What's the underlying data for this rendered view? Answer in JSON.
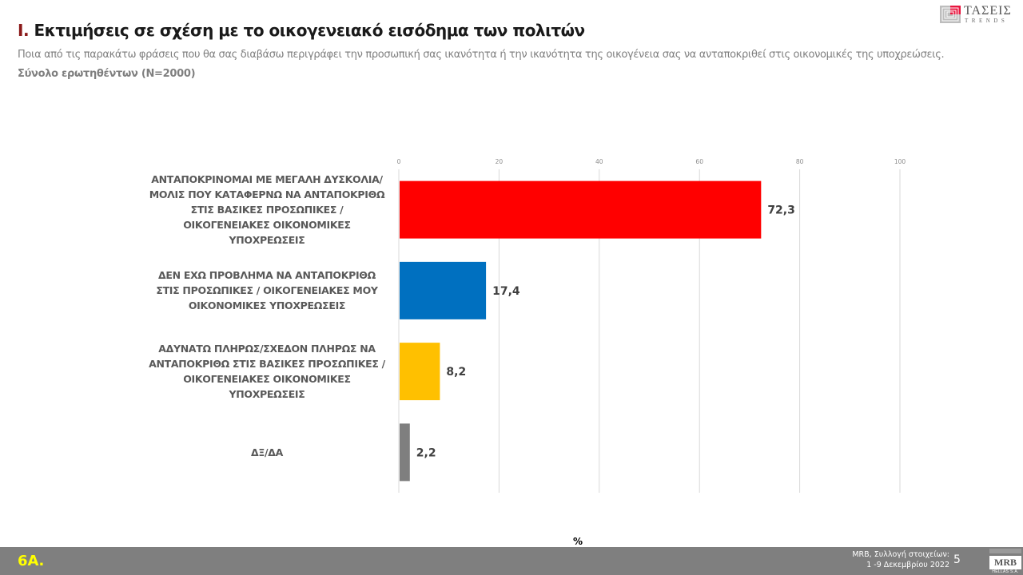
{
  "header": {
    "section_number": "I.",
    "title": "Εκτιμήσεις σε σχέση με το οικογενειακό εισόδημα των πολιτών",
    "question": "Ποια από τις παρακάτω φράσεις που θα σας διαβάσω περιγράφει την προσωπική σας ικανότητα ή την ικανότητα της οικογένεια σας να ανταποκριθεί στις οικονομικές της  υποχρεώσεις.",
    "base": "Σύνολο ερωτηθέντων (Ν=2000)"
  },
  "logo_top": {
    "word": "ΤΑΣΕΙΣ",
    "sub": "TRENDS",
    "icon": "taseis-logo-icon"
  },
  "chart_data": {
    "type": "bar",
    "orientation": "horizontal",
    "title": "",
    "xlabel": "%",
    "ylabel": "",
    "xlim": [
      0,
      100
    ],
    "ticks": [
      0,
      20,
      40,
      60,
      80,
      100
    ],
    "tick_labels": [
      "0",
      "20",
      "40",
      "60",
      "80",
      "100"
    ],
    "grid": true,
    "categories": [
      "ΑΝΤΑΠΟΚΡΙΝΟΜΑΙ ΜΕ ΜΕΓΑΛΗ ΔΥΣΚΟΛΙΑ/ΜΟΛΙΣ ΠΟΥ ΚΑΤΑΦΕΡΝΩ ΝΑ ΑΝΤΑΠΟΚΡΙΘΩ ΣΤΙΣ ΒΑΣΙΚΕΣ ΠΡΟΣΩΠΙΚΕΣ / ΟΙΚΟΓΕΝΕΙΑΚΕΣ ΟΙΚΟΝΟΜΙΚΕΣ ΥΠΟΧΡΕΩΣΕΙΣ",
      "ΔΕΝ ΕΧΩ ΠΡΟΒΛΗΜΑ ΝΑ ΑΝΤΑΠΟΚΡΙΘΩ ΣΤΙΣ ΠΡΟΣΩΠΙΚΕΣ / ΟΙΚΟΓΕΝΕΙΑΚΕΣ ΜΟΥ ΟΙΚΟΝΟΜΙΚΕΣ ΥΠΟΧΡΕΩΣΕΙΣ",
      "ΑΔΥΝΑΤΩ ΠΛΗΡΩΣ/ΣΧΕΔΟΝ ΠΛΗΡΩΣ ΝΑ ΑΝΤΑΠΟΚΡΙΘΩ ΣΤΙΣ ΒΑΣΙΚΕΣ ΠΡΟΣΩΠΙΚΕΣ / ΟΙΚΟΓΕΝΕΙΑΚΕΣ ΟΙΚΟΝΟΜΙΚΕΣ ΥΠΟΧΡΕΩΣΕΙΣ",
      "ΔΞ/ΔΑ"
    ],
    "values": [
      72.3,
      17.4,
      8.2,
      2.2
    ],
    "value_labels": [
      "72,3",
      "17,4",
      "8,2",
      "2,2"
    ],
    "colors": [
      "#ff0000",
      "#0070c0",
      "#ffc000",
      "#7f7f7f"
    ]
  },
  "footer": {
    "slide_code": "6Α.",
    "source_line1": "MRB, Συλλογή στοιχείων:",
    "source_line2": "1 -9 Δεκεμβρίου 2022",
    "page_number": "5",
    "logo_text": "MRB",
    "logo_sub": "HELLAS S.A."
  }
}
